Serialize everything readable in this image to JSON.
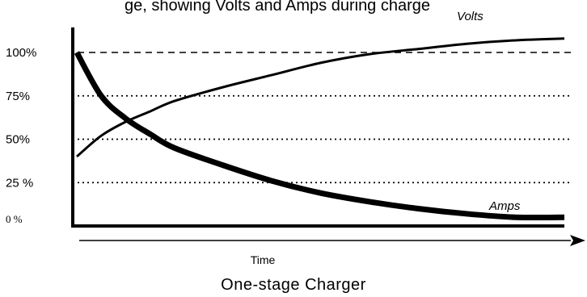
{
  "chart_data": {
    "type": "line",
    "title": "One-stage Charger",
    "top_caption_fragment": "ge, showing Volts and Amps during charge",
    "xlabel": "Time",
    "ylabel": "",
    "ylim": [
      0,
      100
    ],
    "y_ticks": [
      {
        "value": 100,
        "label": "100%",
        "line": "dashed"
      },
      {
        "value": 75,
        "label": "75%",
        "line": "dotted"
      },
      {
        "value": 50,
        "label": "50%",
        "line": "dotted"
      },
      {
        "value": 25,
        "label": "25 %",
        "line": "dotted"
      },
      {
        "value": 0,
        "label": "0 %",
        "line": "none"
      }
    ],
    "x": [
      0,
      0.05,
      0.1,
      0.15,
      0.2,
      0.3,
      0.4,
      0.5,
      0.6,
      0.7,
      0.8,
      0.9,
      1.0
    ],
    "series": [
      {
        "name": "Volts",
        "values": [
          40,
          52,
          60,
          66,
          72,
          80,
          87,
          94,
          99,
          102,
          105,
          107,
          108
        ]
      },
      {
        "name": "Amps",
        "values": [
          100,
          75,
          62,
          53,
          45,
          35,
          26,
          19,
          14,
          10,
          7,
          5,
          5
        ]
      }
    ],
    "grid": true,
    "legend": "inline labels",
    "colors": {
      "line": "#000000",
      "background": "#ffffff"
    }
  }
}
